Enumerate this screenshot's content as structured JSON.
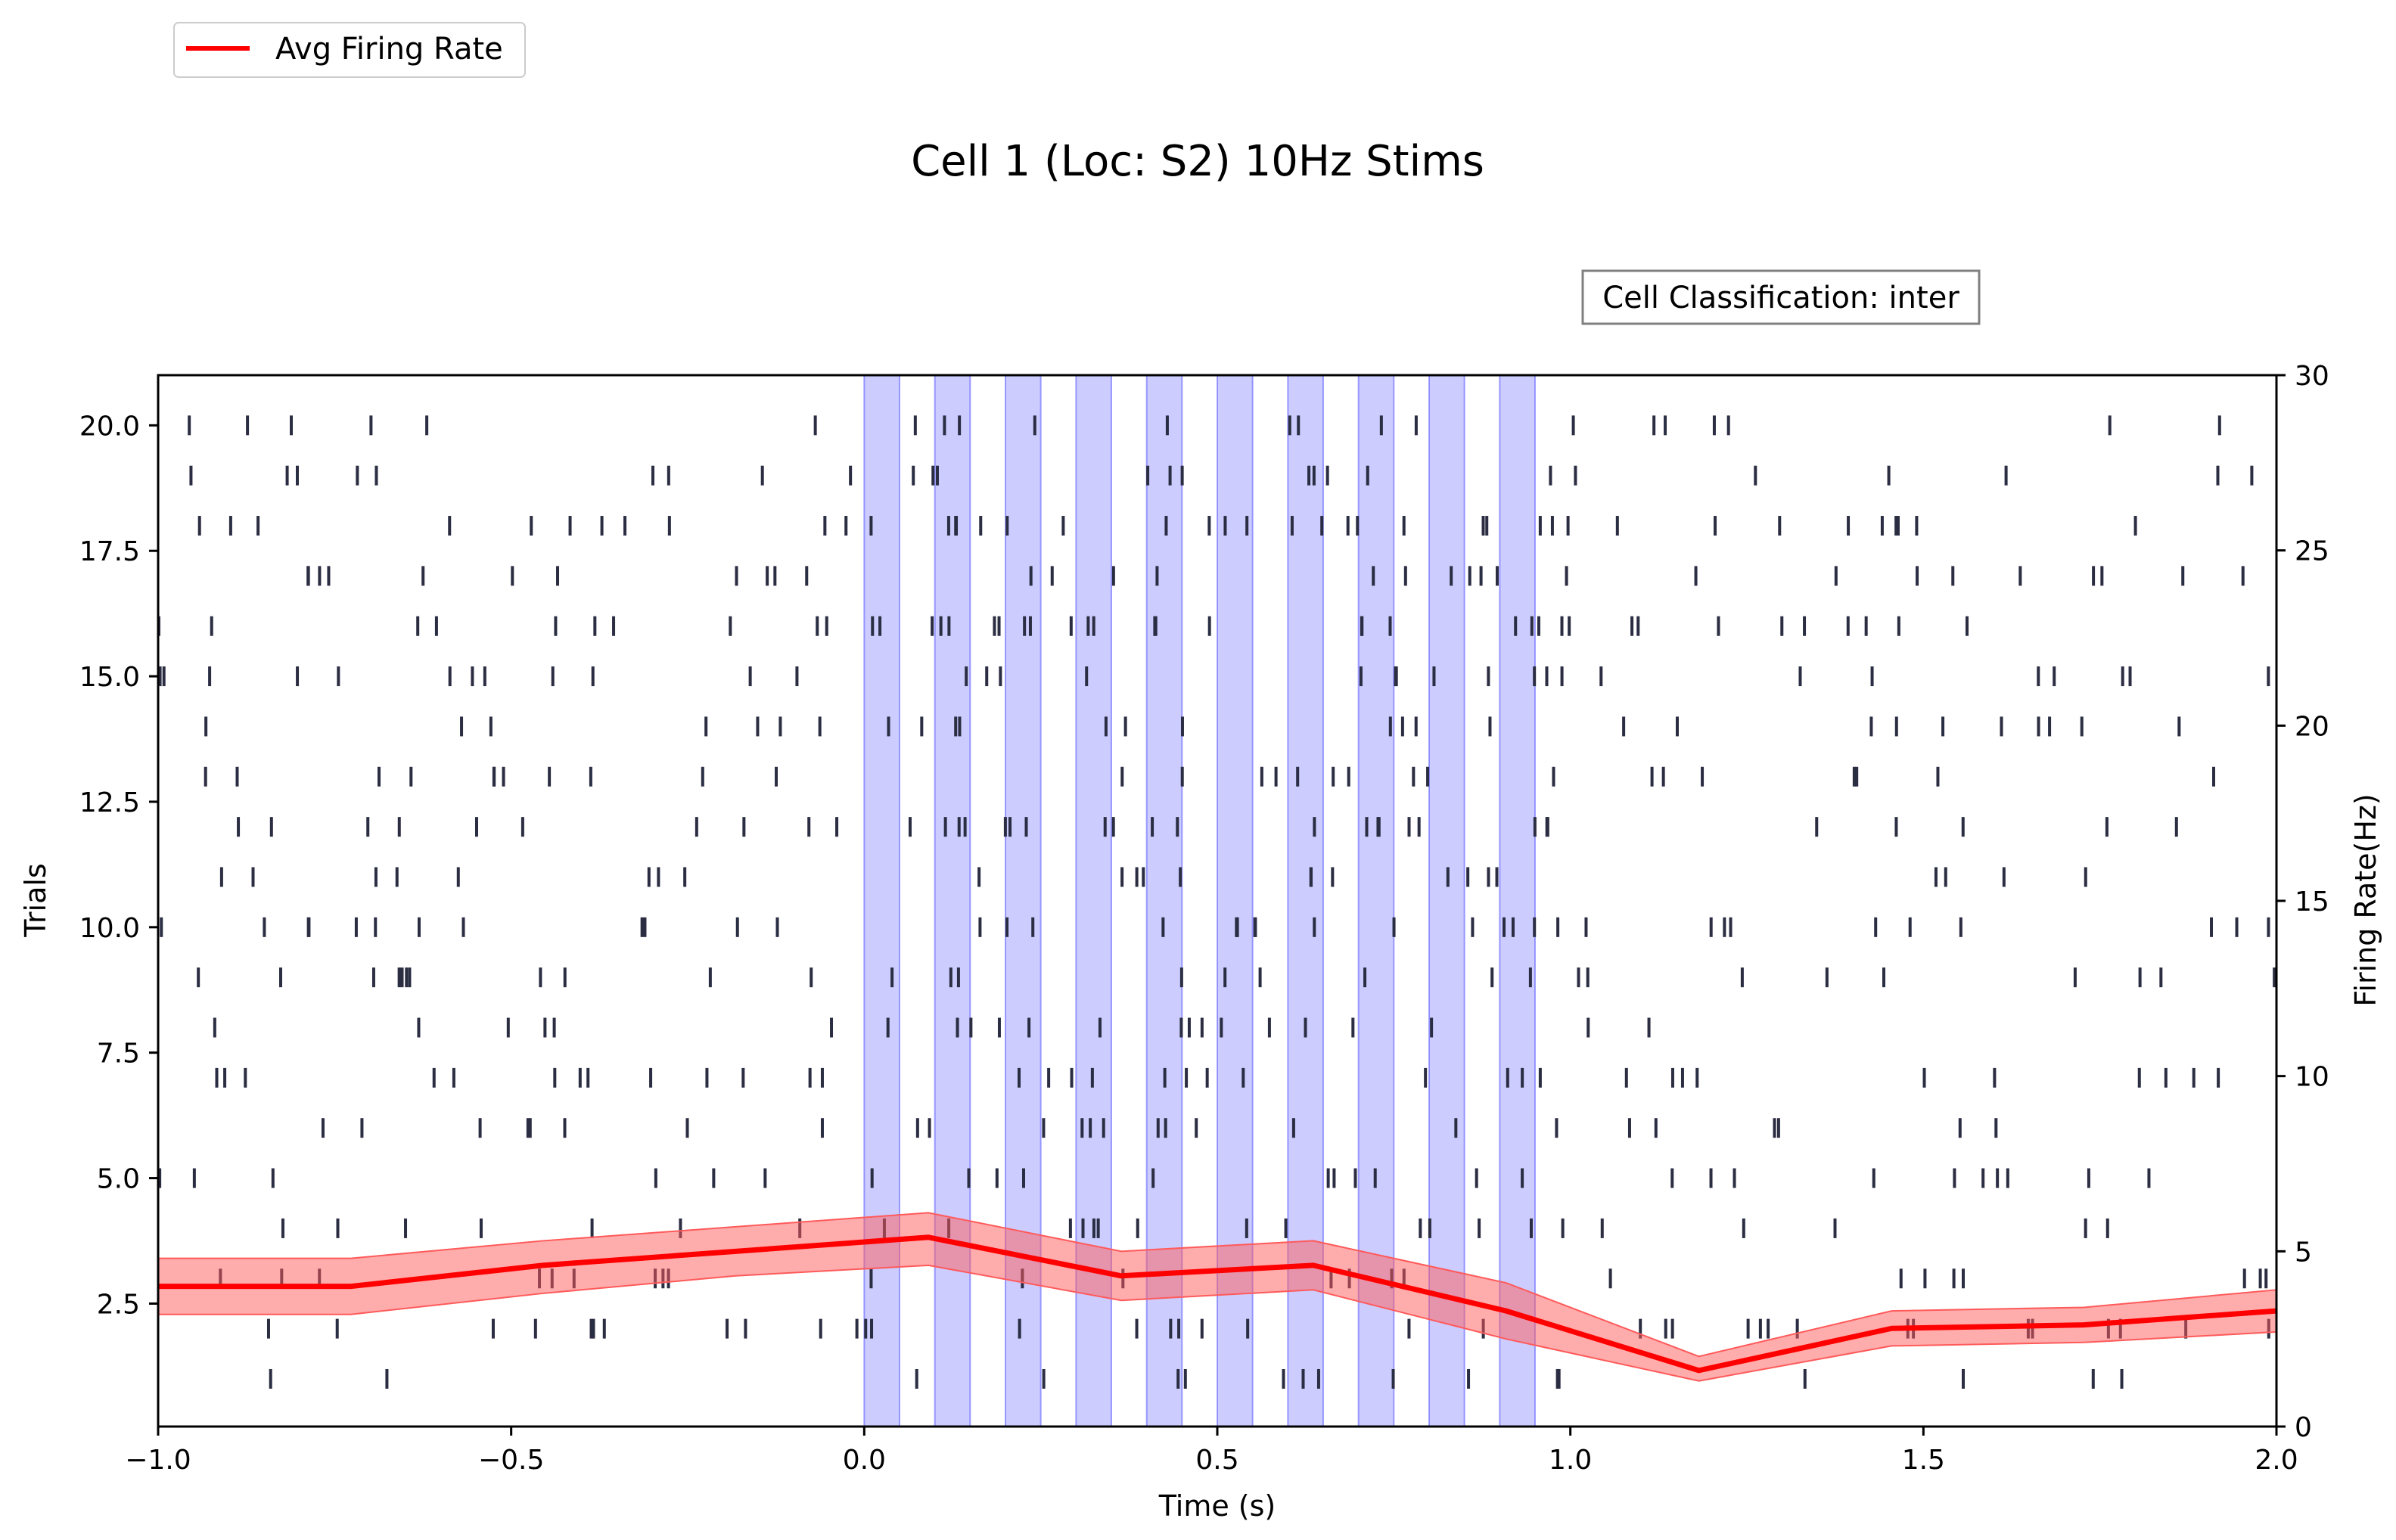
{
  "chart_data": {
    "type": "raster_with_line",
    "title": "Cell 1 (Loc: S2) 10Hz Stims",
    "annotation": "Cell Classification: inter",
    "xlabel": "Time (s)",
    "ylabel_left": "Trials",
    "ylabel_right": "Firing Rate(Hz)",
    "xlim": [
      -1.0,
      2.0
    ],
    "ylim_left": [
      0.05,
      21.0
    ],
    "ylim_right": [
      0,
      30
    ],
    "x_ticks": [
      -1.0,
      -0.5,
      0.0,
      0.5,
      1.0,
      1.5,
      2.0
    ],
    "x_tick_labels": [
      "−1.0",
      "−0.5",
      "0.0",
      "0.5",
      "1.0",
      "1.5",
      "2.0"
    ],
    "left_ticks": [
      2.5,
      5.0,
      7.5,
      10.0,
      12.5,
      15.0,
      17.5,
      20.0
    ],
    "left_tick_labels": [
      "2.5",
      "5.0",
      "7.5",
      "10.0",
      "12.5",
      "15.0",
      "17.5",
      "20.0"
    ],
    "right_ticks": [
      0,
      5,
      10,
      15,
      20,
      25,
      30
    ],
    "right_tick_labels": [
      "0",
      "5",
      "10",
      "15",
      "20",
      "25",
      "30"
    ],
    "stim_windows": [
      [
        0.0,
        0.05
      ],
      [
        0.1,
        0.15
      ],
      [
        0.2,
        0.25
      ],
      [
        0.3,
        0.35
      ],
      [
        0.4,
        0.45
      ],
      [
        0.5,
        0.55
      ],
      [
        0.6,
        0.65
      ],
      [
        0.7,
        0.75
      ],
      [
        0.8,
        0.85
      ],
      [
        0.9,
        0.95
      ]
    ],
    "series": [
      {
        "name": "Avg Firing Rate",
        "x": [
          -1.0,
          -0.727,
          -0.455,
          -0.182,
          0.091,
          0.364,
          0.636,
          0.909,
          1.182,
          1.455,
          1.727,
          2.0
        ],
        "values": [
          4.0,
          4.0,
          4.6,
          5.0,
          5.4,
          4.3,
          4.6,
          3.3,
          1.6,
          2.8,
          2.9,
          3.3
        ],
        "lower": [
          3.2,
          3.2,
          3.8,
          4.3,
          4.6,
          3.6,
          3.9,
          2.5,
          1.3,
          2.3,
          2.4,
          2.7
        ],
        "upper": [
          4.8,
          4.8,
          5.3,
          5.7,
          6.1,
          5.0,
          5.3,
          4.1,
          2.0,
          3.3,
          3.4,
          3.9
        ]
      }
    ],
    "raster": {
      "seed": 7,
      "trials": [
        1,
        2,
        3,
        4,
        5,
        6,
        7,
        8,
        9,
        10,
        11,
        12,
        13,
        14,
        15,
        16,
        17,
        18,
        19,
        20
      ],
      "spike_counts": [
        17,
        36,
        24,
        26,
        27,
        26,
        35,
        22,
        29,
        37,
        24,
        35,
        28,
        28,
        32,
        42,
        31,
        41,
        26,
        22
      ],
      "stim_period_fraction": 0.18
    },
    "legend": {
      "placement": "top-left",
      "entries": [
        "Avg Firing Rate"
      ]
    },
    "colors": {
      "raster": "#2b2d42",
      "line": "#ff0000",
      "band": "#ff5a5a",
      "stim": "#8080ff"
    },
    "grid": false
  }
}
